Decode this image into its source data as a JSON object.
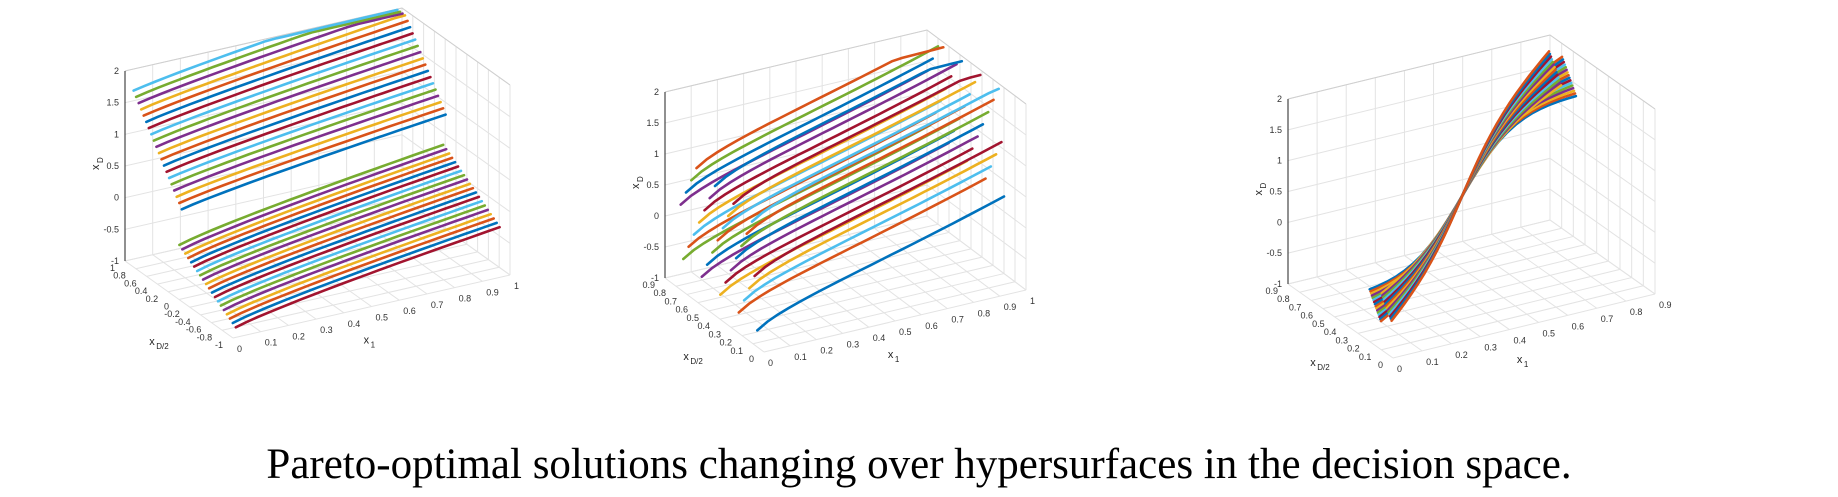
{
  "caption": "Pareto-optimal solutions changing over hypersurfaces in the decision space.",
  "palette": [
    "#0072BD",
    "#D95319",
    "#EDB120",
    "#7E2F8E",
    "#77AC30",
    "#4DBEEE",
    "#A2142F"
  ],
  "chart_data": [
    {
      "type": "line",
      "projection": "3d",
      "grid": true,
      "x_axis": {
        "label": "x",
        "label_sub": "1",
        "range": [
          0,
          1
        ],
        "ticks": [
          "0",
          "0.1",
          "0.2",
          "0.3",
          "0.4",
          "0.5",
          "0.6",
          "0.7",
          "0.8",
          "0.9",
          "1"
        ]
      },
      "y_axis": {
        "label": "x",
        "label_sub": "D/2",
        "range": [
          -1,
          1
        ],
        "ticks": [
          "-1",
          "-0.8",
          "-0.6",
          "-0.4",
          "-0.2",
          "0",
          "0.2",
          "0.4",
          "0.6",
          "0.8",
          "1"
        ]
      },
      "z_axis": {
        "label": "x",
        "label_sub": "D",
        "range": [
          -1,
          2
        ],
        "ticks": [
          "-1",
          "-0.5",
          "0",
          "0.5",
          "1",
          "1.5",
          "2"
        ]
      },
      "series_count": 40
    },
    {
      "type": "line",
      "projection": "3d",
      "grid": true,
      "x_axis": {
        "label": "x",
        "label_sub": "1",
        "range": [
          0,
          1
        ],
        "ticks": [
          "0",
          "0.1",
          "0.2",
          "0.3",
          "0.4",
          "0.5",
          "0.6",
          "0.7",
          "0.8",
          "0.9",
          "1"
        ]
      },
      "y_axis": {
        "label": "x",
        "label_sub": "D/2",
        "range": [
          0,
          1
        ],
        "ticks": [
          "0",
          "0.1",
          "0.2",
          "0.3",
          "0.4",
          "0.5",
          "0.6",
          "0.7",
          "0.8",
          "0.9"
        ]
      },
      "z_axis": {
        "label": "x",
        "label_sub": "D",
        "range": [
          -1,
          2
        ],
        "ticks": [
          "-1",
          "-0.5",
          "0",
          "0.5",
          "1",
          "1.5",
          "2"
        ]
      },
      "series_count": 30
    },
    {
      "type": "line",
      "projection": "3d",
      "grid": true,
      "x_axis": {
        "label": "x",
        "label_sub": "1",
        "range": [
          0,
          1
        ],
        "ticks": [
          "0",
          "0.1",
          "0.2",
          "0.3",
          "0.4",
          "0.5",
          "0.6",
          "0.7",
          "0.8",
          "0.9"
        ]
      },
      "y_axis": {
        "label": "x",
        "label_sub": "D/2",
        "range": [
          0,
          1
        ],
        "ticks": [
          "0",
          "0.1",
          "0.2",
          "0.3",
          "0.4",
          "0.5",
          "0.6",
          "0.7",
          "0.8",
          "0.9"
        ]
      },
      "z_axis": {
        "label": "x",
        "label_sub": "D",
        "range": [
          -1,
          2
        ],
        "ticks": [
          "-1",
          "-0.5",
          "0",
          "0.5",
          "1",
          "1.5",
          "2"
        ]
      },
      "series_count": 30
    }
  ]
}
